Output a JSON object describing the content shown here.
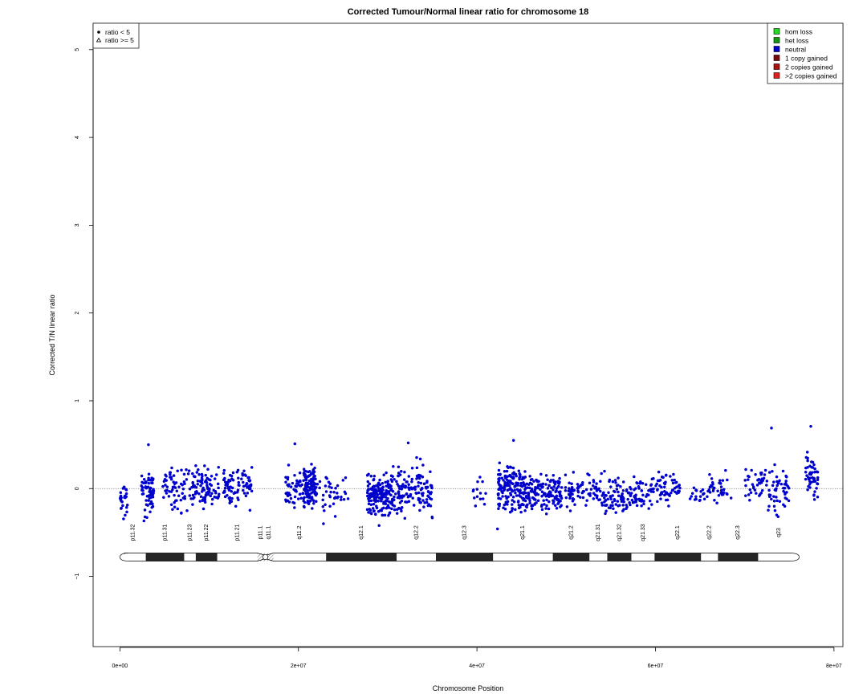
{
  "chart_data": {
    "type": "scatter",
    "title": "Corrected Tumour/Normal linear ratio for chromosome  18",
    "xlabel": "Chromosome Position",
    "ylabel": "Corrected T/N linear ratio",
    "xlim": [
      -3000000,
      81000000
    ],
    "ylim": [
      -1.8,
      5.3
    ],
    "x_ticks": [
      0,
      20000000,
      40000000,
      60000000,
      80000000
    ],
    "x_tick_labels": [
      "0e+00",
      "2e+07",
      "4e+07",
      "6e+07",
      "8e+07"
    ],
    "y_ticks": [
      -1,
      0,
      1,
      2,
      3,
      4,
      5
    ],
    "y_tick_labels": [
      "−1",
      "0",
      "1",
      "2",
      "3",
      "4",
      "5"
    ],
    "reference_line": {
      "y": 0,
      "style": "dotted",
      "color": "#6b6b6b"
    },
    "series": [
      {
        "name": "neutral",
        "marker": "circle",
        "color": "#0000cd",
        "clusters": [
          {
            "x": [
              0,
              900000
            ],
            "center": -0.15,
            "spread": 0.14,
            "count": 26
          },
          {
            "x": [
              2400000,
              3800000
            ],
            "center": -0.05,
            "spread": 0.2,
            "count": 70
          },
          {
            "x": [
              4800000,
              8200000
            ],
            "center": 0.02,
            "spread": 0.15,
            "count": 70
          },
          {
            "x": [
              8200000,
              11200000
            ],
            "center": 0.02,
            "spread": 0.14,
            "count": 85
          },
          {
            "x": [
              11600000,
              14800000
            ],
            "center": 0.02,
            "spread": 0.15,
            "count": 85
          },
          {
            "x": [
              18500000,
              20500000
            ],
            "center": 0.02,
            "spread": 0.15,
            "count": 50
          },
          {
            "x": [
              20500000,
              22000000
            ],
            "center": 0.0,
            "spread": 0.18,
            "count": 110
          },
          {
            "x": [
              22000000,
              25800000
            ],
            "center": -0.05,
            "spread": 0.13,
            "count": 40
          },
          {
            "x": [
              27700000,
              30500000
            ],
            "center": -0.08,
            "spread": 0.16,
            "count": 170
          },
          {
            "x": [
              30500000,
              35000000
            ],
            "center": -0.02,
            "spread": 0.18,
            "count": 140
          },
          {
            "x": [
              39500000,
              41200000
            ],
            "center": 0.0,
            "spread": 0.12,
            "count": 14
          },
          {
            "x": [
              42300000,
              45500000
            ],
            "center": 0.0,
            "spread": 0.19,
            "count": 170
          },
          {
            "x": [
              45500000,
              49500000
            ],
            "center": -0.05,
            "spread": 0.14,
            "count": 150
          },
          {
            "x": [
              49800000,
              54000000
            ],
            "center": -0.02,
            "spread": 0.12,
            "count": 80
          },
          {
            "x": [
              54000000,
              59000000
            ],
            "center": -0.07,
            "spread": 0.13,
            "count": 120
          },
          {
            "x": [
              59000000,
              62800000
            ],
            "center": 0.0,
            "spread": 0.13,
            "count": 75
          },
          {
            "x": [
              63500000,
              66000000
            ],
            "center": -0.07,
            "spread": 0.1,
            "count": 20
          },
          {
            "x": [
              66000000,
              68500000
            ],
            "center": -0.03,
            "spread": 0.11,
            "count": 35
          },
          {
            "x": [
              70000000,
              72200000
            ],
            "center": 0.02,
            "spread": 0.15,
            "count": 35
          },
          {
            "x": [
              72200000,
              75000000
            ],
            "center": 0.0,
            "spread": 0.18,
            "count": 55
          },
          {
            "x": [
              76800000,
              78200000
            ],
            "center": 0.12,
            "spread": 0.18,
            "count": 50
          }
        ],
        "outliers": [
          {
            "x": 73000000,
            "y": 0.69
          },
          {
            "x": 77400000,
            "y": 0.71
          },
          {
            "x": 44100000,
            "y": 0.55
          },
          {
            "x": 32300000,
            "y": 0.52
          },
          {
            "x": 19600000,
            "y": 0.51
          },
          {
            "x": 3200000,
            "y": 0.5
          },
          {
            "x": 42300000,
            "y": -0.46
          },
          {
            "x": 22800000,
            "y": -0.4
          }
        ]
      }
    ],
    "legend_markers": {
      "position": "top-left",
      "items": [
        {
          "label": "ratio < 5",
          "marker": "filled-circle"
        },
        {
          "label": "ratio >= 5",
          "marker": "open-triangle"
        }
      ]
    },
    "legend_states": {
      "position": "top-right",
      "items": [
        {
          "label": "hom loss",
          "color": "#22dd22"
        },
        {
          "label": "het loss",
          "color": "#119911"
        },
        {
          "label": "neutral",
          "color": "#0000cd"
        },
        {
          "label": "1 copy gained",
          "color": "#7a0a0a"
        },
        {
          "label": "2 copies gained",
          "color": "#aa1111"
        },
        {
          "label": ">2 copies gained",
          "color": "#e02020"
        }
      ]
    },
    "ideogram": {
      "y": -0.78,
      "start": 0,
      "end": 76100000,
      "centromere": [
        15400000,
        17200000
      ],
      "bands": [
        {
          "name": "p11.32",
          "start": 0,
          "end": 2900000,
          "stain": "white"
        },
        {
          "name": "p11.31",
          "start": 2900000,
          "end": 7200000,
          "stain": "dark"
        },
        {
          "name": "p11.23",
          "start": 7200000,
          "end": 8500000,
          "stain": "white"
        },
        {
          "name": "p11.22",
          "start": 8500000,
          "end": 10900000,
          "stain": "dark"
        },
        {
          "name": "p11.21",
          "start": 10900000,
          "end": 15400000,
          "stain": "white"
        },
        {
          "name": "p11.1",
          "start": 15400000,
          "end": 16100000,
          "stain": "hatch"
        },
        {
          "name": "q11.1",
          "start": 16100000,
          "end": 17200000,
          "stain": "hatch"
        },
        {
          "name": "q11.2",
          "start": 17200000,
          "end": 23100000,
          "stain": "white"
        },
        {
          "name": "q12.1",
          "start": 23100000,
          "end": 31000000,
          "stain": "dark"
        },
        {
          "name": "q12.2",
          "start": 31000000,
          "end": 35400000,
          "stain": "white"
        },
        {
          "name": "q12.3",
          "start": 35400000,
          "end": 41800000,
          "stain": "dark"
        },
        {
          "name": "q21.1",
          "start": 41800000,
          "end": 48500000,
          "stain": "white"
        },
        {
          "name": "q21.2",
          "start": 48500000,
          "end": 52600000,
          "stain": "dark"
        },
        {
          "name": "q21.31",
          "start": 52600000,
          "end": 54600000,
          "stain": "white"
        },
        {
          "name": "q21.32",
          "start": 54600000,
          "end": 57300000,
          "stain": "dark"
        },
        {
          "name": "q21.33",
          "start": 57300000,
          "end": 59900000,
          "stain": "white"
        },
        {
          "name": "q22.1",
          "start": 59900000,
          "end": 65100000,
          "stain": "dark"
        },
        {
          "name": "q22.2",
          "start": 65100000,
          "end": 67000000,
          "stain": "white"
        },
        {
          "name": "q22.3",
          "start": 67000000,
          "end": 71500000,
          "stain": "dark"
        },
        {
          "name": "q23",
          "start": 71500000,
          "end": 76100000,
          "stain": "white"
        }
      ]
    },
    "grid": false
  }
}
